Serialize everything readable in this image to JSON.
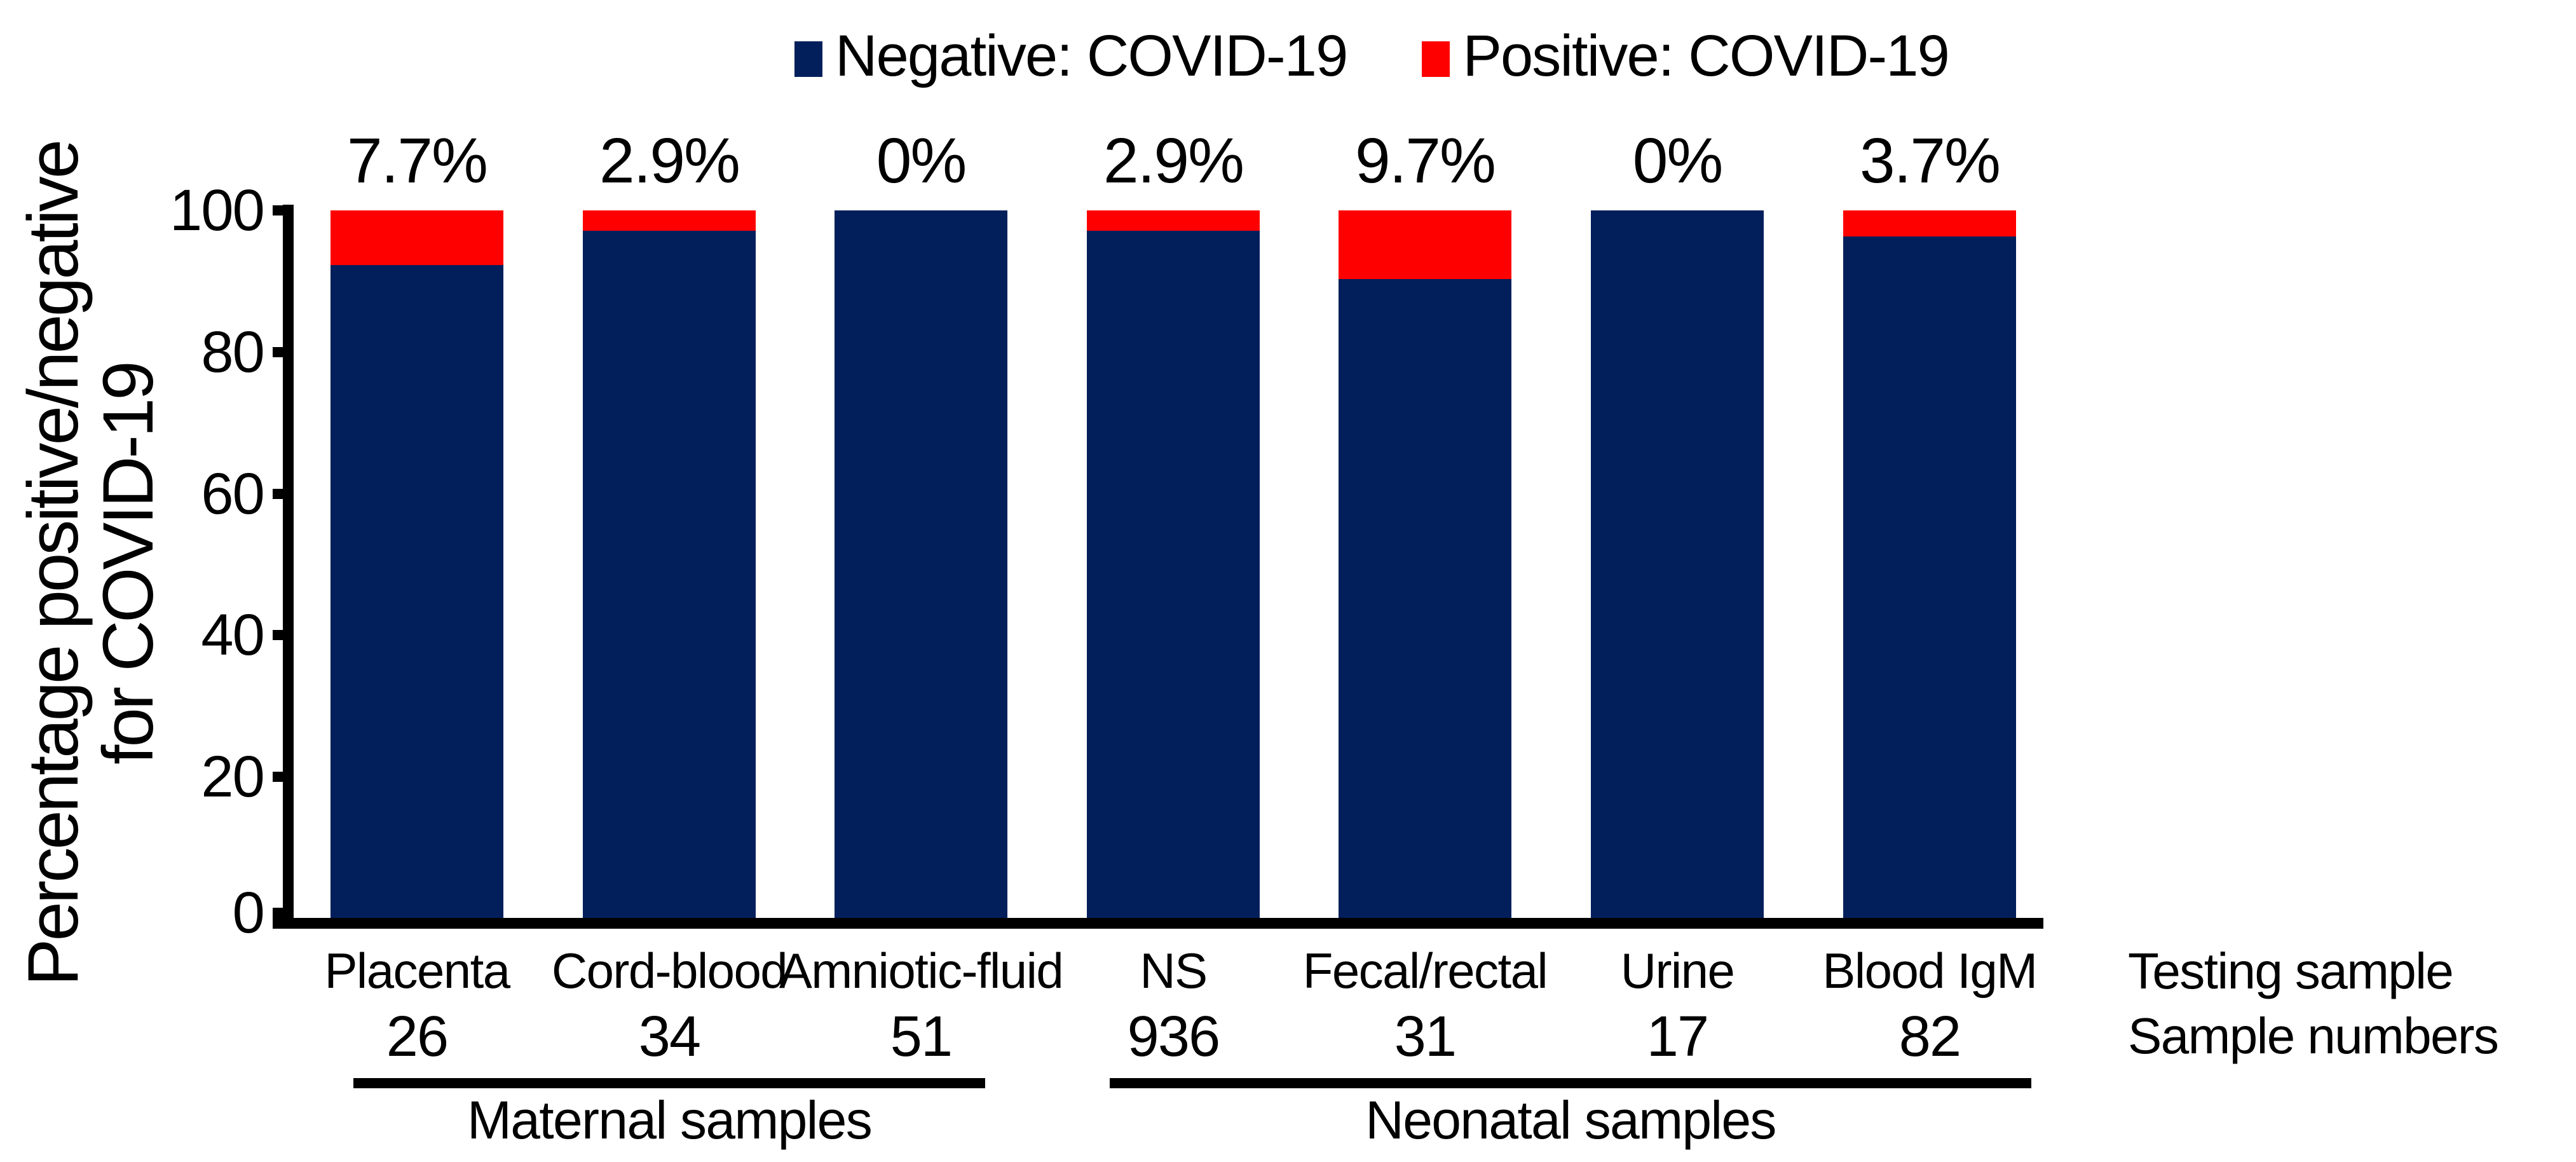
{
  "legend": {
    "items": [
      {
        "label": "Negative: COVID-19",
        "color": "#021F5C"
      },
      {
        "label": "Positive: COVID-19",
        "color": "#FF0000"
      }
    ]
  },
  "y_axis": {
    "title_line1": "Percentage positive/negative",
    "title_line2": "for COVID-19",
    "tick_labels": [
      "100",
      "80",
      "60",
      "40",
      "20",
      "0"
    ]
  },
  "right_labels": {
    "testing_sample": "Testing sample",
    "sample_numbers": "Sample numbers"
  },
  "chart_data": {
    "type": "bar",
    "stacked": true,
    "title": "",
    "xlabel": "Testing sample",
    "ylabel": "Percentage positive/negative for COVID-19",
    "ylim": [
      0,
      100
    ],
    "grid": false,
    "legend_position": "top",
    "categories": [
      "Placenta",
      "Cord-blood",
      "Amniotic-fluid",
      "NS",
      "Fecal/rectal",
      "Urine",
      "Blood IgM"
    ],
    "sample_numbers": [
      "26",
      "34",
      "51",
      "936",
      "31",
      "17",
      "82"
    ],
    "series": [
      {
        "name": "Negative: COVID-19",
        "color": "#021F5C",
        "values": [
          92.3,
          97.1,
          100,
          97.1,
          90.3,
          100,
          96.3
        ]
      },
      {
        "name": "Positive: COVID-19",
        "color": "#FF0000",
        "values": [
          7.7,
          2.9,
          0,
          2.9,
          9.7,
          0,
          3.7
        ]
      }
    ],
    "bar_labels": [
      "7.7%",
      "2.9%",
      "0%",
      "2.9%",
      "9.7%",
      "0%",
      "3.7%"
    ],
    "group_spans": [
      {
        "label": "Maternal samples",
        "from": 0,
        "to": 2
      },
      {
        "label": "Neonatal samples",
        "from": 3,
        "to": 6
      }
    ]
  }
}
